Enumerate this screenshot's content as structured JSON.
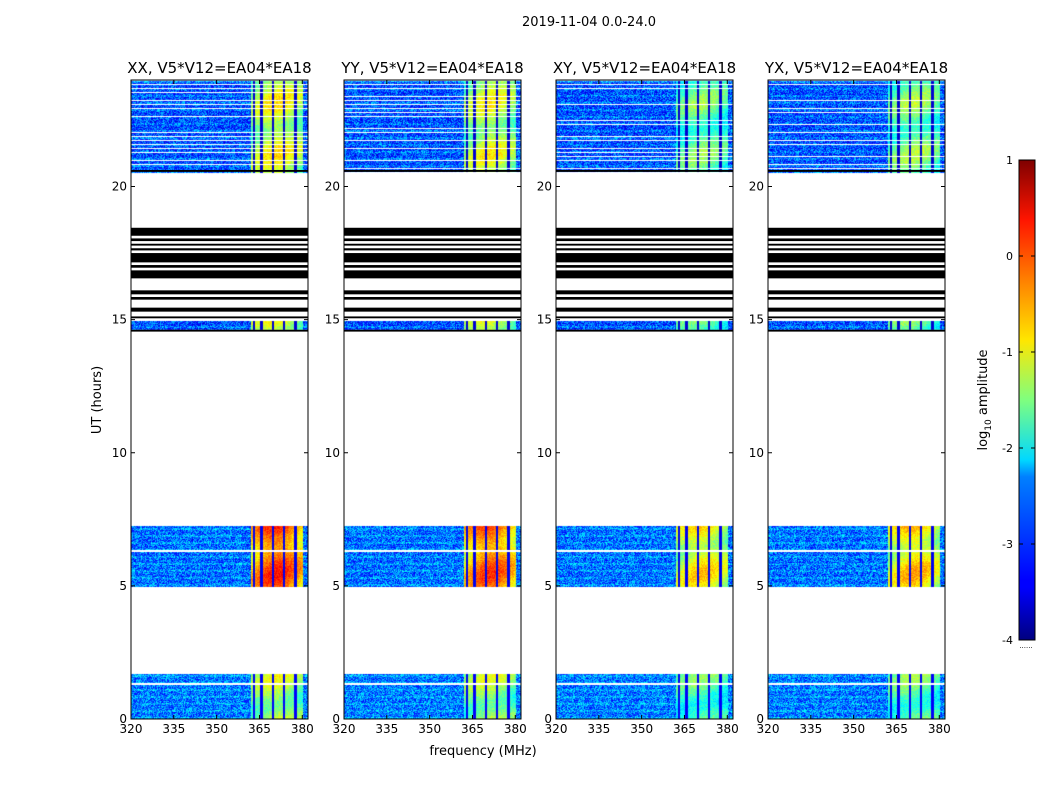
{
  "chart_data": {
    "type": "heatmap",
    "suptitle": "2019-11-04 0.0-24.0",
    "xlabel": "frequency (MHz)",
    "ylabel": "UT (hours)",
    "xlim": [
      320,
      382
    ],
    "ylim": [
      0,
      24
    ],
    "xticks": [
      320,
      335,
      350,
      365,
      380
    ],
    "yticks": [
      0,
      5,
      10,
      15,
      20
    ],
    "colorbar": {
      "label_base": "log",
      "label_sub": "10",
      "label_rest": " amplitude",
      "range": [
        -4,
        1
      ],
      "ticks": [
        1,
        0,
        -1,
        -2,
        -3,
        -4
      ],
      "colormap": "jet",
      "footer": "......"
    },
    "panels": [
      {
        "title": "XX, V5*V12=EA04*EA18",
        "rfi_strength": 1.0
      },
      {
        "title": "YY, V5*V12=EA04*EA18",
        "rfi_strength": 0.95
      },
      {
        "title": "XY, V5*V12=EA04*EA18",
        "rfi_strength": 0.7
      },
      {
        "title": "YX, V5*V12=EA04*EA18",
        "rfi_strength": 0.75
      }
    ],
    "data_blocks_hours": [
      {
        "from": 0,
        "to": 1.7,
        "noise_level": -2.8,
        "rfi_level": -1.8
      },
      {
        "from": 4.95,
        "to": 7.25,
        "noise_level": -2.85,
        "rfi_level": -0.6
      },
      {
        "from": 14.6,
        "to": 14.95,
        "noise_level": -3.0,
        "rfi_level": -1.6
      },
      {
        "from": 20.5,
        "to": 24,
        "noise_level": -3.0,
        "rfi_level": -1.6
      }
    ],
    "flagged_lines_hours": [
      1.35,
      6.35
    ],
    "rfi_band_mhz": [
      362,
      380
    ],
    "rfi_channels_mhz": [
      363,
      365.5,
      369.5,
      373.5,
      377.5
    ],
    "horizontal_bands_hours": [
      {
        "from": 14.55,
        "to": 14.62,
        "color": "#000"
      },
      {
        "from": 15.05,
        "to": 15.12,
        "color": "#000"
      },
      {
        "from": 15.3,
        "to": 15.45,
        "color": "#000"
      },
      {
        "from": 15.75,
        "to": 15.85,
        "color": "#000"
      },
      {
        "from": 15.95,
        "to": 16.1,
        "color": "#000"
      },
      {
        "from": 16.55,
        "to": 16.85,
        "color": "#000"
      },
      {
        "from": 16.95,
        "to": 17.05,
        "color": "#000"
      },
      {
        "from": 17.15,
        "to": 17.5,
        "color": "#000"
      },
      {
        "from": 17.6,
        "to": 17.68,
        "color": "#000"
      },
      {
        "from": 17.78,
        "to": 17.85,
        "color": "#000"
      },
      {
        "from": 17.95,
        "to": 18.05,
        "color": "#000"
      },
      {
        "from": 18.15,
        "to": 18.45,
        "color": "#000"
      },
      {
        "from": 20.55,
        "to": 20.62,
        "color": "#000"
      }
    ]
  }
}
